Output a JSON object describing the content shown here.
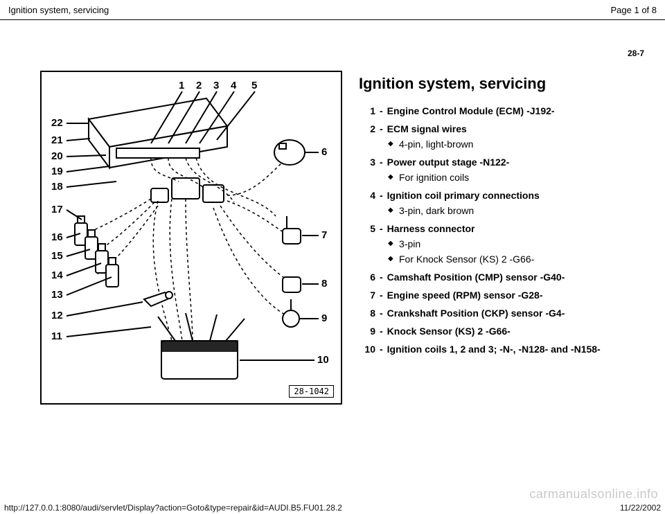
{
  "header": {
    "title": "Ignition system, servicing",
    "page_info": "Page 1 of 8"
  },
  "page_ref": "28-7",
  "main_title": "Ignition system, servicing",
  "items": [
    {
      "num": "1",
      "label": "Engine Control Module (ECM) -J192-",
      "subs": []
    },
    {
      "num": "2",
      "label": "ECM signal wires",
      "subs": [
        "4-pin, light-brown"
      ]
    },
    {
      "num": "3",
      "label": "Power output stage -N122-",
      "subs": [
        "For ignition coils"
      ]
    },
    {
      "num": "4",
      "label": "Ignition coil primary connections",
      "subs": [
        "3-pin, dark brown"
      ]
    },
    {
      "num": "5",
      "label": "Harness connector",
      "subs": [
        "3-pin",
        "For Knock Sensor (KS) 2 -G66-"
      ]
    },
    {
      "num": "6",
      "label": "Camshaft Position (CMP) sensor -G40-",
      "subs": []
    },
    {
      "num": "7",
      "label": "Engine speed (RPM) sensor -G28-",
      "subs": []
    },
    {
      "num": "8",
      "label": "Crankshaft Position (CKP) sensor -G4-",
      "subs": []
    },
    {
      "num": "9",
      "label": "Knock Sensor (KS) 2 -G66-",
      "subs": []
    },
    {
      "num": "10",
      "label": "Ignition coils 1, 2 and 3; -N-, -N128- and -N158-",
      "subs": []
    }
  ],
  "figure": {
    "ref": "28-1042",
    "callouts_top": [
      "1",
      "2",
      "3",
      "4",
      "5"
    ],
    "callouts_left": [
      "22",
      "21",
      "20",
      "19",
      "18",
      "17",
      "16",
      "15",
      "14",
      "13",
      "12",
      "11"
    ],
    "callouts_right": [
      "6",
      "7",
      "8",
      "9",
      "10"
    ]
  },
  "footer": {
    "url": "http://127.0.0.1:8080/audi/servlet/Display?action=Goto&type=repair&id=AUDI.B5.FU01.28.2",
    "date": "11/22/2002"
  },
  "watermark": "carmanualsonline.info",
  "style": {
    "bg": "#ffffff",
    "fg": "#000000",
    "font_family": "Arial",
    "title_fontsize": 22,
    "body_fontsize": 14,
    "header_fontsize": 13,
    "footer_fontsize": 12,
    "watermark_color": "rgba(0,0,0,0.22)"
  }
}
